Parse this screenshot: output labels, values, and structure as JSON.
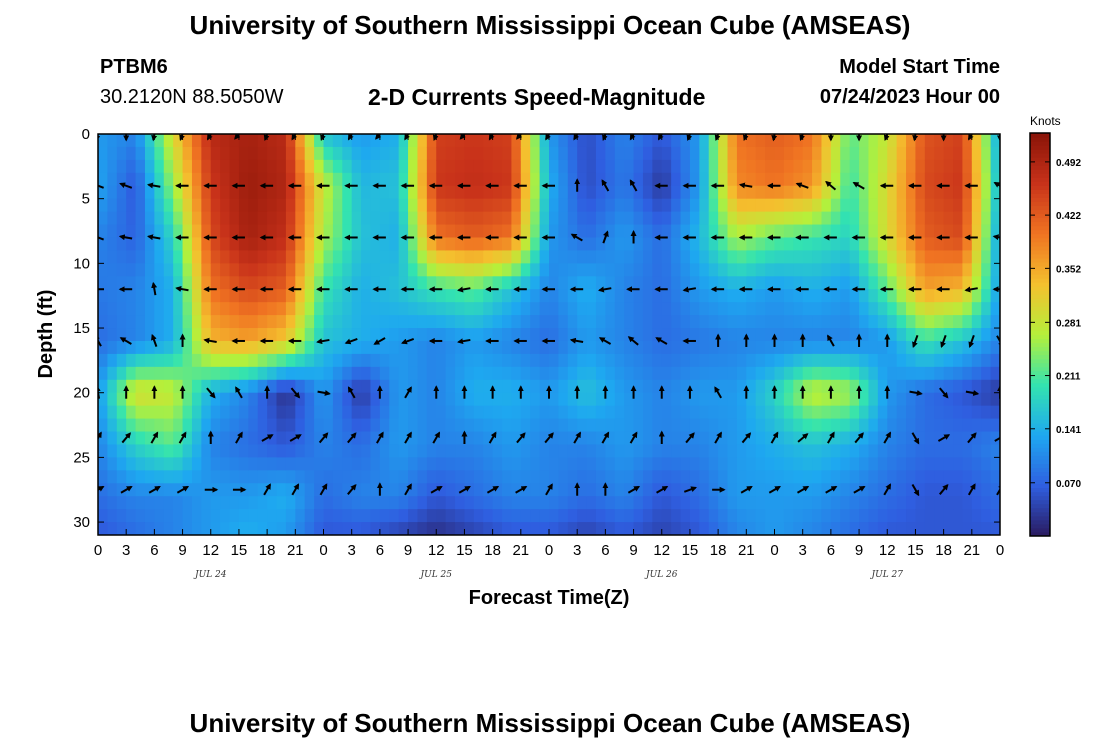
{
  "header": {
    "title": "University of Southern Mississippi Ocean Cube (AMSEAS)",
    "station": "PTBM6",
    "coords": "30.2120N  88.5050W",
    "subtitle": "2-D Currents Speed-Magnitude",
    "start_label": "Model Start Time",
    "start_value": "07/24/2023 Hour 00"
  },
  "footer": {
    "title": "University of Southern Mississippi Ocean Cube (AMSEAS)"
  },
  "chart_data": {
    "type": "heatmap",
    "title": "2-D Currents Speed-Magnitude",
    "xlabel": "Forecast Time(Z)",
    "ylabel": "Depth (ft)",
    "x_range_hours": [
      0,
      96
    ],
    "y_range_ft": [
      0,
      31
    ],
    "y_ticks": [
      0,
      5,
      10,
      15,
      20,
      25,
      30
    ],
    "x_ticks": [
      {
        "h": 0,
        "label": "0"
      },
      {
        "h": 3,
        "label": "3"
      },
      {
        "h": 6,
        "label": "6"
      },
      {
        "h": 9,
        "label": "9"
      },
      {
        "h": 12,
        "label": "12"
      },
      {
        "h": 15,
        "label": "15"
      },
      {
        "h": 18,
        "label": "18"
      },
      {
        "h": 21,
        "label": "21"
      },
      {
        "h": 24,
        "label": "0"
      },
      {
        "h": 27,
        "label": "3"
      },
      {
        "h": 30,
        "label": "6"
      },
      {
        "h": 33,
        "label": "9"
      },
      {
        "h": 36,
        "label": "12"
      },
      {
        "h": 39,
        "label": "15"
      },
      {
        "h": 42,
        "label": "18"
      },
      {
        "h": 45,
        "label": "21"
      },
      {
        "h": 48,
        "label": "0"
      },
      {
        "h": 51,
        "label": "3"
      },
      {
        "h": 54,
        "label": "6"
      },
      {
        "h": 57,
        "label": "9"
      },
      {
        "h": 60,
        "label": "12"
      },
      {
        "h": 63,
        "label": "15"
      },
      {
        "h": 66,
        "label": "18"
      },
      {
        "h": 69,
        "label": "21"
      },
      {
        "h": 72,
        "label": "0"
      },
      {
        "h": 75,
        "label": "3"
      },
      {
        "h": 78,
        "label": "6"
      },
      {
        "h": 81,
        "label": "9"
      },
      {
        "h": 84,
        "label": "12"
      },
      {
        "h": 87,
        "label": "15"
      },
      {
        "h": 90,
        "label": "18"
      },
      {
        "h": 93,
        "label": "21"
      },
      {
        "h": 96,
        "label": "0"
      }
    ],
    "day_labels": [
      {
        "h": 12,
        "label": "JUL 24"
      },
      {
        "h": 36,
        "label": "JUL 25"
      },
      {
        "h": 60,
        "label": "JUL 26"
      },
      {
        "h": 84,
        "label": "JUL 27"
      }
    ],
    "colorbar": {
      "unit": "Knots",
      "min": 0.0,
      "max": 0.53,
      "ticks": [
        0.07,
        0.141,
        0.211,
        0.281,
        0.352,
        0.422,
        0.492
      ],
      "tick_labels": [
        "0.070",
        "0.141",
        "0.211",
        "0.281",
        "0.352",
        "0.422",
        "0.492"
      ],
      "colors": [
        "#2a1a5e",
        "#2f5ee0",
        "#1ea8f0",
        "#33e3b0",
        "#b5f03a",
        "#f4c02e",
        "#f07422",
        "#c8321a",
        "#8a1408"
      ]
    },
    "speed_field": {
      "note": "approximate current speed (knots) on a grid; rows = depth (ft), columns = forecast hour",
      "hours": [
        0,
        4,
        8,
        12,
        16,
        20,
        24,
        28,
        32,
        36,
        40,
        44,
        48,
        52,
        56,
        60,
        64,
        68,
        72,
        76,
        80,
        84,
        88,
        92,
        96
      ],
      "depths": [
        0,
        4,
        8,
        12,
        16,
        20,
        24,
        28,
        31
      ],
      "speeds": [
        [
          0.12,
          0.1,
          0.3,
          0.48,
          0.5,
          0.48,
          0.16,
          0.12,
          0.14,
          0.45,
          0.46,
          0.45,
          0.12,
          0.05,
          0.1,
          0.06,
          0.12,
          0.4,
          0.42,
          0.4,
          0.22,
          0.28,
          0.43,
          0.45,
          0.12
        ],
        [
          0.13,
          0.06,
          0.25,
          0.46,
          0.51,
          0.49,
          0.28,
          0.15,
          0.16,
          0.46,
          0.47,
          0.46,
          0.14,
          0.05,
          0.09,
          0.03,
          0.12,
          0.38,
          0.4,
          0.37,
          0.2,
          0.3,
          0.44,
          0.46,
          0.14
        ],
        [
          0.1,
          0.07,
          0.18,
          0.44,
          0.5,
          0.47,
          0.26,
          0.16,
          0.14,
          0.4,
          0.42,
          0.4,
          0.12,
          0.08,
          0.12,
          0.08,
          0.15,
          0.26,
          0.22,
          0.2,
          0.18,
          0.3,
          0.42,
          0.44,
          0.12
        ],
        [
          0.09,
          0.1,
          0.14,
          0.4,
          0.44,
          0.42,
          0.2,
          0.14,
          0.16,
          0.2,
          0.22,
          0.16,
          0.1,
          0.14,
          0.1,
          0.08,
          0.12,
          0.14,
          0.12,
          0.14,
          0.12,
          0.22,
          0.36,
          0.34,
          0.12
        ],
        [
          0.08,
          0.1,
          0.14,
          0.34,
          0.36,
          0.32,
          0.16,
          0.14,
          0.12,
          0.1,
          0.12,
          0.1,
          0.08,
          0.12,
          0.1,
          0.08,
          0.09,
          0.1,
          0.1,
          0.1,
          0.1,
          0.12,
          0.2,
          0.16,
          0.1
        ],
        [
          0.12,
          0.3,
          0.28,
          0.14,
          0.1,
          0.02,
          0.12,
          0.03,
          0.12,
          0.1,
          0.14,
          0.14,
          0.12,
          0.16,
          0.12,
          0.1,
          0.12,
          0.12,
          0.18,
          0.28,
          0.26,
          0.12,
          0.08,
          0.06,
          0.03
        ],
        [
          0.1,
          0.18,
          0.22,
          0.1,
          0.08,
          0.06,
          0.1,
          0.08,
          0.12,
          0.1,
          0.1,
          0.12,
          0.1,
          0.1,
          0.12,
          0.1,
          0.1,
          0.12,
          0.14,
          0.16,
          0.14,
          0.1,
          0.08,
          0.08,
          0.1
        ],
        [
          0.08,
          0.1,
          0.1,
          0.12,
          0.12,
          0.14,
          0.08,
          0.1,
          0.1,
          0.06,
          0.08,
          0.1,
          0.1,
          0.08,
          0.1,
          0.06,
          0.08,
          0.12,
          0.12,
          0.12,
          0.1,
          0.08,
          0.06,
          0.06,
          0.08
        ],
        [
          0.06,
          0.08,
          0.1,
          0.12,
          0.14,
          0.12,
          0.06,
          0.06,
          0.04,
          0.02,
          0.04,
          0.06,
          0.06,
          0.04,
          0.06,
          0.04,
          0.06,
          0.1,
          0.12,
          0.1,
          0.08,
          0.06,
          0.06,
          0.06,
          0.06
        ]
      ]
    },
    "arrow_depths": [
      0,
      4,
      8,
      12,
      16,
      20,
      23.5,
      27.5
    ],
    "arrow_hours": [
      0,
      3,
      6,
      9,
      12,
      15,
      18,
      21,
      24,
      27,
      30,
      33,
      36,
      39,
      42,
      45,
      48,
      51,
      54,
      57,
      60,
      63,
      66,
      69,
      72,
      75,
      78,
      81,
      84,
      87,
      90,
      93,
      96
    ],
    "arrow_directions_deg": [
      [
        200,
        180,
        190,
        200,
        210,
        220,
        200,
        210,
        200,
        210,
        220,
        210,
        200,
        220,
        210,
        220,
        210,
        210,
        200,
        210,
        210,
        200,
        200,
        200,
        190,
        200,
        180,
        180,
        200,
        190,
        180,
        210,
        180
      ],
      [
        290,
        290,
        280,
        270,
        270,
        270,
        270,
        270,
        270,
        270,
        270,
        270,
        270,
        270,
        270,
        270,
        270,
        0,
        330,
        330,
        270,
        270,
        270,
        280,
        270,
        290,
        310,
        300,
        270,
        270,
        270,
        270,
        300
      ],
      [
        290,
        280,
        280,
        270,
        270,
        270,
        270,
        270,
        270,
        270,
        270,
        270,
        270,
        270,
        270,
        270,
        270,
        300,
        20,
        0,
        270,
        270,
        270,
        270,
        270,
        270,
        270,
        270,
        270,
        270,
        270,
        270,
        280
      ],
      [
        270,
        270,
        350,
        280,
        270,
        270,
        270,
        270,
        270,
        270,
        270,
        270,
        270,
        260,
        270,
        270,
        270,
        270,
        260,
        270,
        270,
        260,
        270,
        270,
        270,
        270,
        270,
        270,
        270,
        270,
        270,
        260,
        270
      ],
      [
        330,
        300,
        340,
        0,
        280,
        270,
        270,
        270,
        260,
        250,
        240,
        250,
        270,
        260,
        270,
        270,
        270,
        280,
        300,
        310,
        300,
        270,
        0,
        0,
        0,
        0,
        330,
        0,
        0,
        200,
        200,
        200,
        150
      ],
      [
        350,
        0,
        0,
        0,
        140,
        330,
        0,
        140,
        100,
        330,
        0,
        30,
        0,
        0,
        0,
        0,
        0,
        0,
        0,
        0,
        0,
        0,
        330,
        0,
        0,
        0,
        0,
        0,
        0,
        100,
        140,
        100,
        0
      ],
      [
        30,
        40,
        30,
        30,
        0,
        30,
        60,
        60,
        40,
        40,
        30,
        30,
        30,
        0,
        30,
        40,
        40,
        30,
        30,
        30,
        0,
        40,
        30,
        40,
        30,
        50,
        30,
        40,
        30,
        150,
        60,
        40,
        60
      ],
      [
        60,
        60,
        60,
        60,
        90,
        90,
        30,
        30,
        30,
        40,
        0,
        30,
        60,
        60,
        60,
        60,
        30,
        0,
        0,
        60,
        60,
        70,
        90,
        60,
        60,
        60,
        60,
        60,
        30,
        150,
        40,
        30,
        30
      ]
    ]
  }
}
